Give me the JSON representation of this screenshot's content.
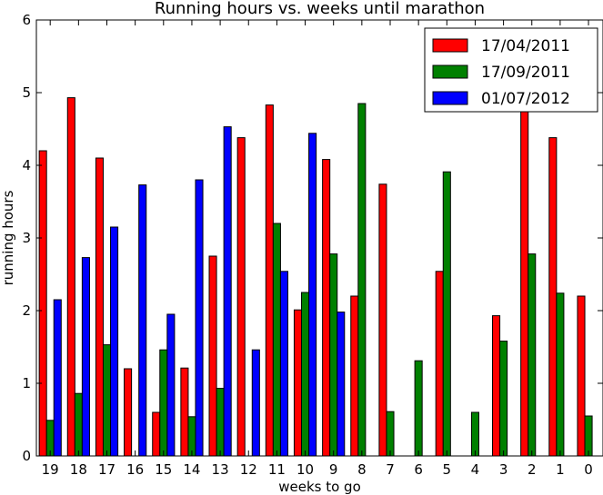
{
  "chart_data": {
    "type": "bar",
    "title": "Running hours vs. weeks until marathon",
    "xlabel": "weeks to go",
    "ylabel": "running hours",
    "ylim": [
      0,
      6
    ],
    "yticks": [
      "0",
      "1",
      "2",
      "3",
      "4",
      "5",
      "6"
    ],
    "categories": [
      "19",
      "18",
      "17",
      "16",
      "15",
      "14",
      "13",
      "12",
      "11",
      "10",
      "9",
      "8",
      "7",
      "6",
      "5",
      "4",
      "3",
      "2",
      "1",
      "0"
    ],
    "legend_position": "top-right",
    "grid": false,
    "series": [
      {
        "name": "17/04/2011",
        "color": "#ff0000",
        "values": [
          4.2,
          4.93,
          4.1,
          1.2,
          0.6,
          1.21,
          2.75,
          4.38,
          4.83,
          2.01,
          4.08,
          2.2,
          3.74,
          null,
          2.54,
          null,
          1.93,
          4.8,
          4.38,
          2.2
        ]
      },
      {
        "name": "17/09/2011",
        "color": "#008000",
        "values": [
          0.49,
          0.86,
          1.53,
          null,
          1.46,
          0.54,
          0.93,
          null,
          3.2,
          2.25,
          2.78,
          4.85,
          0.61,
          1.31,
          3.91,
          0.6,
          1.58,
          2.78,
          2.24,
          0.55
        ]
      },
      {
        "name": "01/07/2012",
        "color": "#0000ff",
        "values": [
          2.15,
          2.73,
          3.15,
          3.73,
          1.95,
          3.8,
          4.53,
          1.46,
          2.54,
          4.44,
          1.98,
          null,
          null,
          null,
          null,
          null,
          null,
          null,
          null,
          null
        ]
      }
    ]
  }
}
